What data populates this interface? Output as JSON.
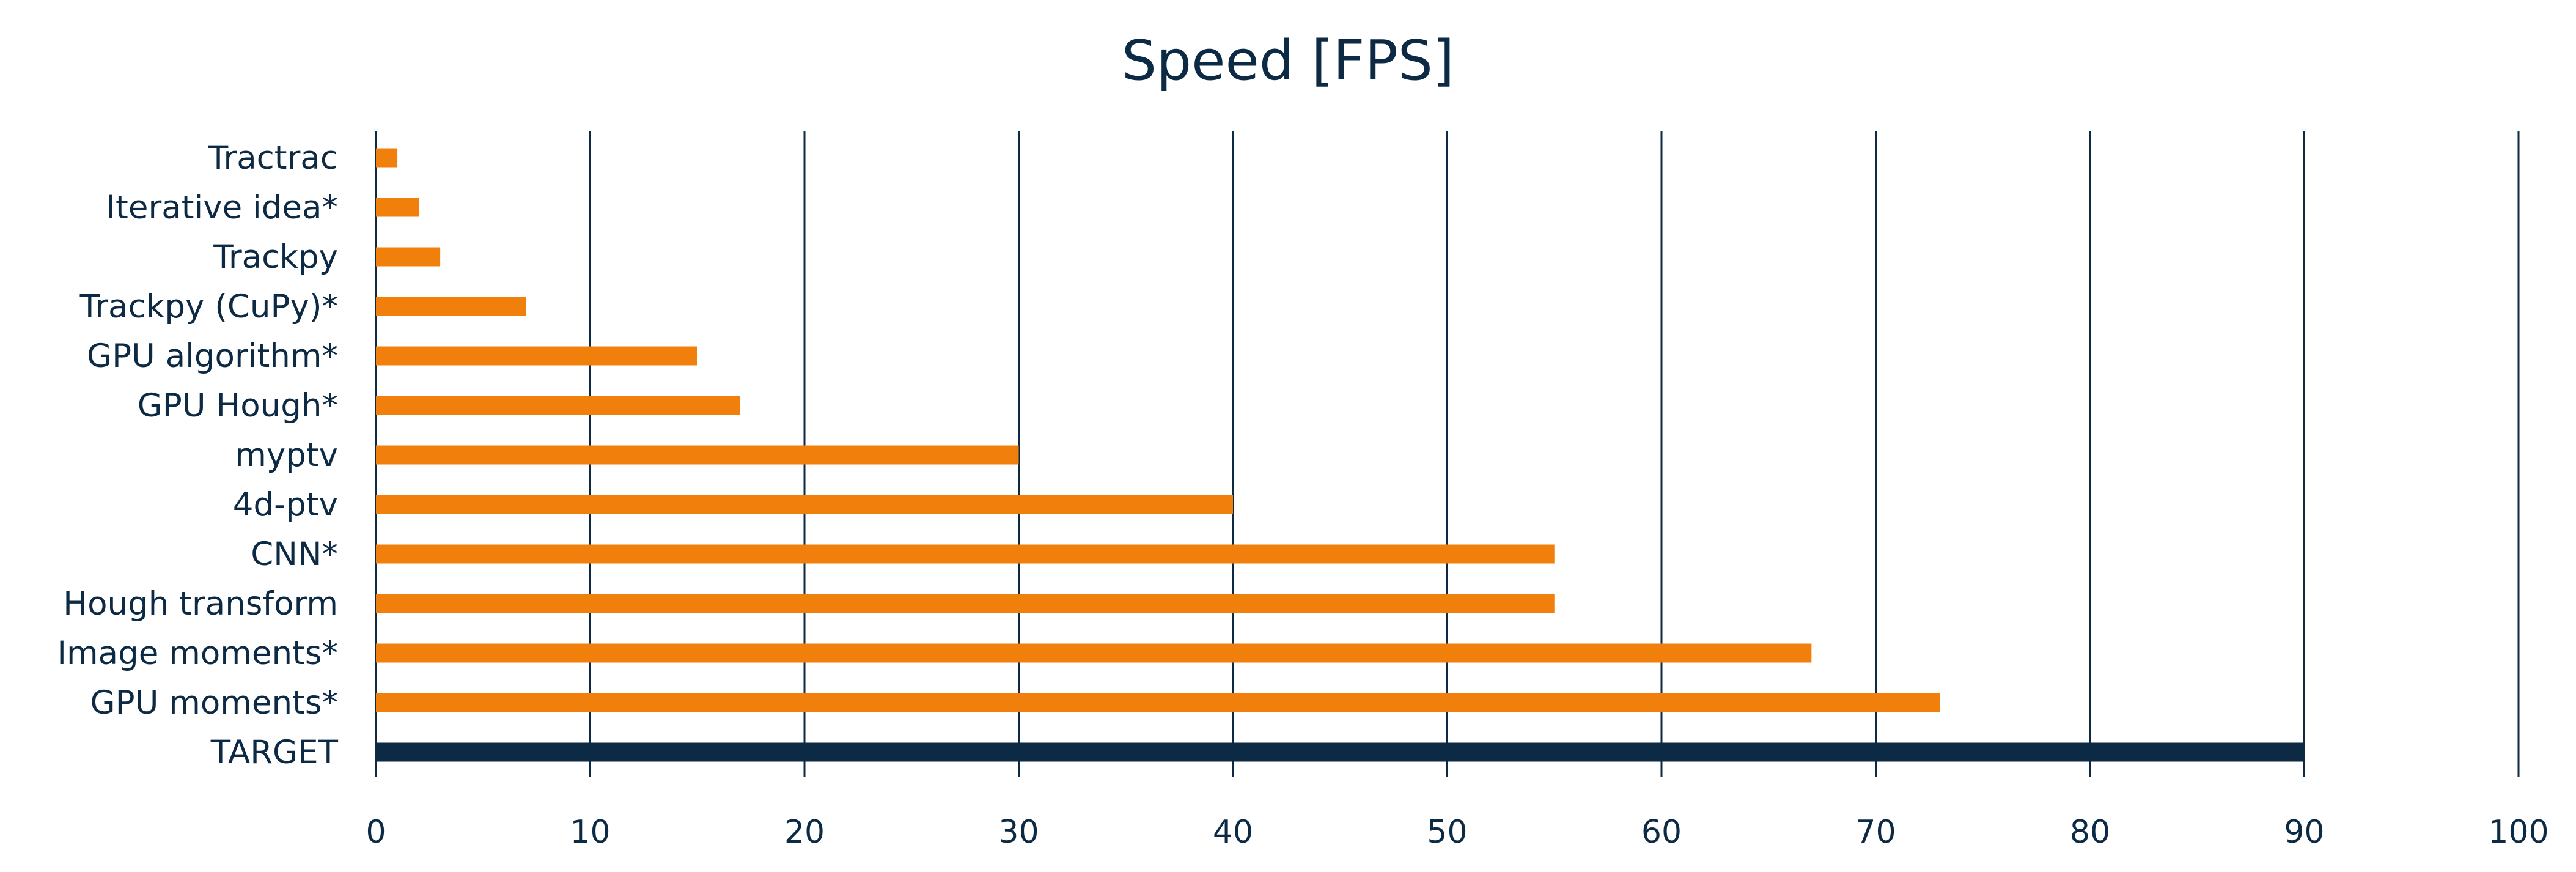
{
  "chart_data": {
    "type": "bar",
    "orientation": "horizontal",
    "title": "Speed [FPS]",
    "xlabel": "",
    "ylabel": "",
    "xlim": [
      0,
      100
    ],
    "xticks": [
      0,
      10,
      20,
      30,
      40,
      50,
      60,
      70,
      80,
      90,
      100
    ],
    "grid": "vertical",
    "categories": [
      "Tractrac",
      "Iterative idea*",
      "Trackpy",
      "Trackpy (CuPy)*",
      "GPU algorithm*",
      "GPU Hough*",
      "myptv",
      "4d-ptv",
      "CNN*",
      "Hough transform",
      "Image moments*",
      "GPU moments*",
      "TARGET"
    ],
    "values": [
      1,
      2,
      3,
      7,
      15,
      17,
      30,
      40,
      55,
      55,
      67,
      73,
      90
    ],
    "colors": {
      "default_bar": "#f07f0c",
      "highlight_bar": "#0d2a45",
      "text": "#0d2a45",
      "grid": "#0d2a45"
    },
    "highlight_category": "TARGET"
  }
}
